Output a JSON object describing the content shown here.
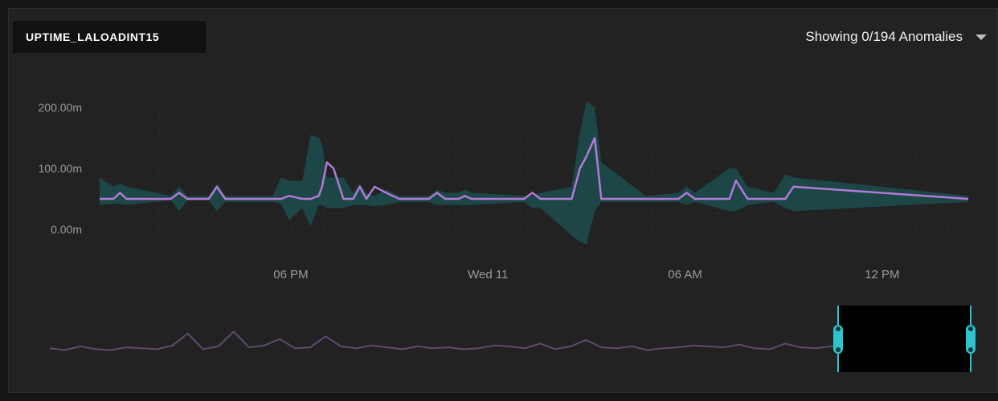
{
  "title": "UPTIME_LALOADINT15",
  "anomalies": {
    "label": "Showing 0/194 Anomalies",
    "icon": "chevron-down-icon"
  },
  "colors": {
    "line": "#b07ad6",
    "band": "#1d4a4a",
    "grid": "#3a3a3a",
    "handle": "#2ec4cc"
  },
  "chart_data": {
    "type": "line",
    "title": "UPTIME_LALOADINT15",
    "ylim": [
      0,
      200
    ],
    "y_tick_labels": [
      "0.00m",
      "100.00m",
      "200.00m"
    ],
    "y_ticks": [
      0,
      100,
      200
    ],
    "x_tick_labels": [
      "06 PM",
      "Wed 11",
      "06 AM",
      "12 PM"
    ],
    "x_ticks_hours": [
      6,
      12,
      18,
      24
    ],
    "x_range_hours": [
      0.18,
      26.62
    ],
    "grid": true,
    "series": [
      {
        "values_x": [
          0.18,
          0.6,
          0.8,
          1.0,
          2.35,
          2.6,
          2.85,
          3.5,
          3.75,
          4.0,
          5.45,
          5.7,
          5.95,
          6.35,
          6.6,
          6.85,
          6.95,
          7.1,
          7.3,
          7.6,
          7.9,
          8.1,
          8.3,
          8.55,
          8.9,
          9.3,
          10.2,
          10.45,
          10.7,
          11.1,
          11.3,
          11.5,
          13.1,
          13.35,
          13.6,
          14.55,
          14.8,
          15.0,
          15.25,
          15.45,
          16.8,
          17.8,
          18.05,
          18.3,
          19.35,
          19.55,
          19.9,
          20.7,
          21.05,
          21.3,
          26.62
        ],
        "values_y": [
          50,
          50,
          60,
          50,
          50,
          60,
          50,
          50,
          70,
          50,
          50,
          50,
          55,
          50,
          50,
          55,
          70,
          110,
          100,
          50,
          50,
          70,
          50,
          70,
          60,
          50,
          50,
          60,
          50,
          50,
          55,
          50,
          50,
          60,
          50,
          50,
          100,
          120,
          150,
          50,
          50,
          50,
          60,
          50,
          50,
          80,
          50,
          50,
          50,
          70,
          50
        ],
        "band_upper": [
          85,
          70,
          75,
          70,
          55,
          70,
          55,
          55,
          75,
          55,
          55,
          85,
          80,
          80,
          155,
          150,
          140,
          85,
          85,
          85,
          60,
          75,
          60,
          55,
          65,
          55,
          55,
          65,
          60,
          60,
          65,
          60,
          55,
          55,
          60,
          70,
          160,
          210,
          200,
          110,
          55,
          60,
          70,
          60,
          100,
          100,
          70,
          60,
          90,
          85,
          55
        ],
        "band_lower": [
          40,
          42,
          42,
          40,
          48,
          30,
          48,
          48,
          30,
          45,
          45,
          42,
          15,
          35,
          5,
          40,
          40,
          35,
          35,
          35,
          40,
          40,
          40,
          38,
          40,
          45,
          45,
          40,
          40,
          40,
          40,
          40,
          45,
          35,
          35,
          -10,
          -20,
          -25,
          30,
          45,
          45,
          45,
          40,
          45,
          30,
          30,
          40,
          45,
          35,
          30,
          45
        ]
      }
    ],
    "overview_values": [
      12,
      10,
      14,
      11,
      10,
      13,
      12,
      11,
      15,
      28,
      11,
      14,
      30,
      13,
      15,
      22,
      12,
      13,
      25,
      14,
      12,
      15,
      13,
      11,
      14,
      12,
      13,
      11,
      12,
      15,
      14,
      12,
      17,
      11,
      14,
      21,
      13,
      12,
      14,
      10,
      12,
      13,
      15,
      14,
      13,
      16,
      12,
      11,
      17,
      13,
      12,
      14,
      15,
      13,
      12,
      14,
      16,
      11,
      19,
      15,
      12
    ]
  }
}
